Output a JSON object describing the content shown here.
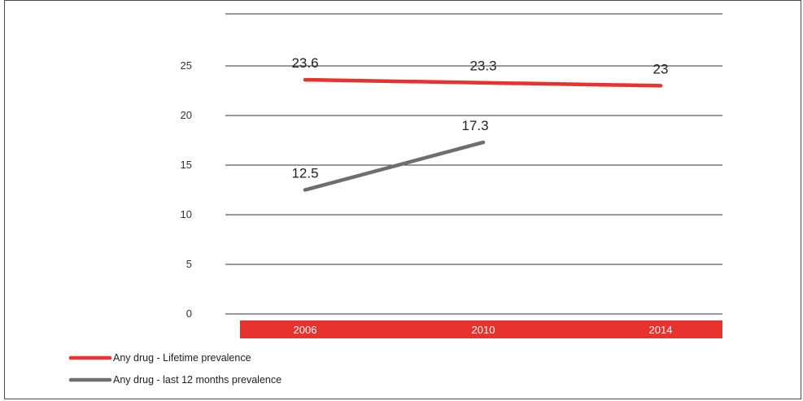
{
  "chart_data": {
    "type": "line",
    "categories": [
      "2006",
      "2010",
      "2014"
    ],
    "ylim": [
      0,
      30
    ],
    "yticks": [
      0,
      5,
      10,
      15,
      20,
      25
    ],
    "grid": true,
    "category_band_color": "#e8322d",
    "legend_position": "bottom-left",
    "series": [
      {
        "name": "Any drug - Lifetime prevalence",
        "color": "#e8322d",
        "values": [
          23.6,
          23.3,
          23
        ],
        "labels": [
          "23.6",
          "23.3",
          "23"
        ]
      },
      {
        "name": "Any drug - last 12 months prevalence",
        "color": "#6d6e71",
        "values": [
          12.5,
          17.3,
          null
        ],
        "labels": [
          "12.5",
          "17.3",
          ""
        ]
      }
    ]
  }
}
